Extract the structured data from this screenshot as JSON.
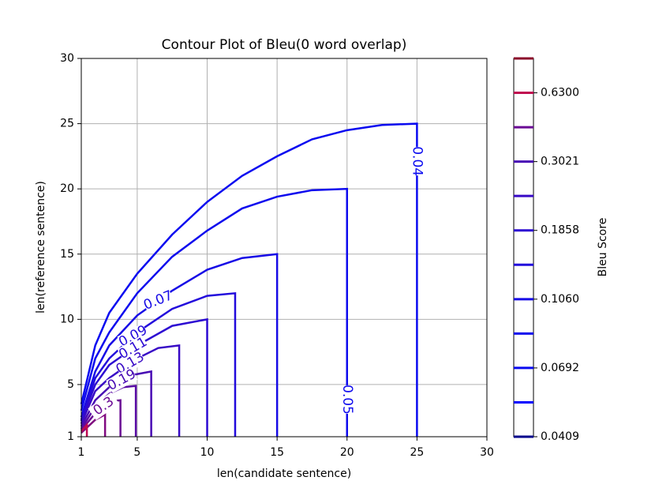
{
  "chart_data": {
    "type": "contour",
    "title": "Contour Plot of Bleu(0 word overlap)",
    "xlabel": "len(candidate sentence)",
    "ylabel": "len(reference sentence)",
    "xlim": [
      1,
      30
    ],
    "ylim": [
      1,
      30
    ],
    "xticks": [
      1,
      5,
      10,
      15,
      20,
      25,
      30
    ],
    "yticks": [
      1,
      5,
      10,
      15,
      20,
      25,
      30
    ],
    "grid": true,
    "contours": [
      {
        "level": 0.04,
        "color": "#0a0af0",
        "x": [
          1,
          2,
          3,
          5,
          7.5,
          10,
          12.5,
          15,
          17.5,
          20,
          22.5,
          25,
          25
        ],
        "y": [
          3.5,
          8,
          10.5,
          13.5,
          16.5,
          19,
          21,
          22.5,
          23.8,
          24.5,
          24.9,
          25,
          1
        ]
      },
      {
        "level": 0.05,
        "color": "#0e0aee",
        "x": [
          1,
          2,
          3,
          5,
          7.5,
          10,
          12.5,
          15,
          17.5,
          20,
          20
        ],
        "y": [
          3,
          7,
          9,
          12,
          14.8,
          16.8,
          18.5,
          19.4,
          19.9,
          20,
          1
        ]
      },
      {
        "level": 0.07,
        "color": "#160ae6",
        "x": [
          1,
          2,
          3,
          5,
          7.5,
          10,
          12.5,
          15,
          15
        ],
        "y": [
          2.5,
          6,
          8,
          10.3,
          12.2,
          13.8,
          14.7,
          15,
          1
        ]
      },
      {
        "level": 0.09,
        "color": "#220adc",
        "x": [
          1,
          2,
          3,
          5,
          7.5,
          10,
          12,
          12
        ],
        "y": [
          2.3,
          5.5,
          7,
          9,
          10.8,
          11.8,
          12,
          1
        ]
      },
      {
        "level": 0.11,
        "color": "#2c0ad2",
        "x": [
          1,
          2,
          3,
          5,
          7.5,
          10,
          10
        ],
        "y": [
          2.2,
          5,
          6.5,
          8,
          9.5,
          10,
          1
        ]
      },
      {
        "level": 0.13,
        "color": "#380ac6",
        "x": [
          1,
          2,
          3,
          5,
          6.5,
          8,
          8
        ],
        "y": [
          2,
          4.5,
          5.5,
          7,
          7.8,
          8,
          1
        ]
      },
      {
        "level": 0.19,
        "color": "#480ab4",
        "x": [
          1,
          2,
          3,
          4.5,
          6,
          6
        ],
        "y": [
          1.8,
          3.8,
          4.8,
          5.7,
          6,
          1
        ]
      },
      {
        "color": "#580aa4",
        "x": [
          1,
          2,
          3,
          4,
          4.9,
          4.9
        ],
        "y": [
          1.6,
          3.3,
          4.3,
          4.8,
          4.9,
          1
        ]
      },
      {
        "level": 0.3,
        "color": "#6a0a94",
        "x": [
          1,
          2,
          3,
          3.8,
          3.8
        ],
        "y": [
          1.5,
          2.8,
          3.7,
          3.8,
          1
        ]
      },
      {
        "color": "#800a80",
        "x": [
          1,
          2,
          2.7,
          2.7
        ],
        "y": [
          1.3,
          2.3,
          2.7,
          1
        ]
      },
      {
        "color": "#c00a50",
        "x": [
          1,
          1.4,
          1.4
        ],
        "y": [
          1.4,
          1.9,
          1
        ]
      }
    ],
    "colorbar": {
      "label": "Bleu Score",
      "colors": [
        "#00008b",
        "#0000ff",
        "#0a0af0",
        "#0e0aee",
        "#160ae6",
        "#220adc",
        "#2c0ad2",
        "#380ac6",
        "#480ab4",
        "#6a0a94",
        "#c00a50",
        "#8b0a2a"
      ],
      "ticks": [
        0.0409,
        0.0692,
        {
          "value": 0.106,
          "label": "0.1060"
        },
        0.1858,
        0.3021,
        {
          "value": 0.63,
          "label": "0.6300"
        }
      ]
    }
  }
}
